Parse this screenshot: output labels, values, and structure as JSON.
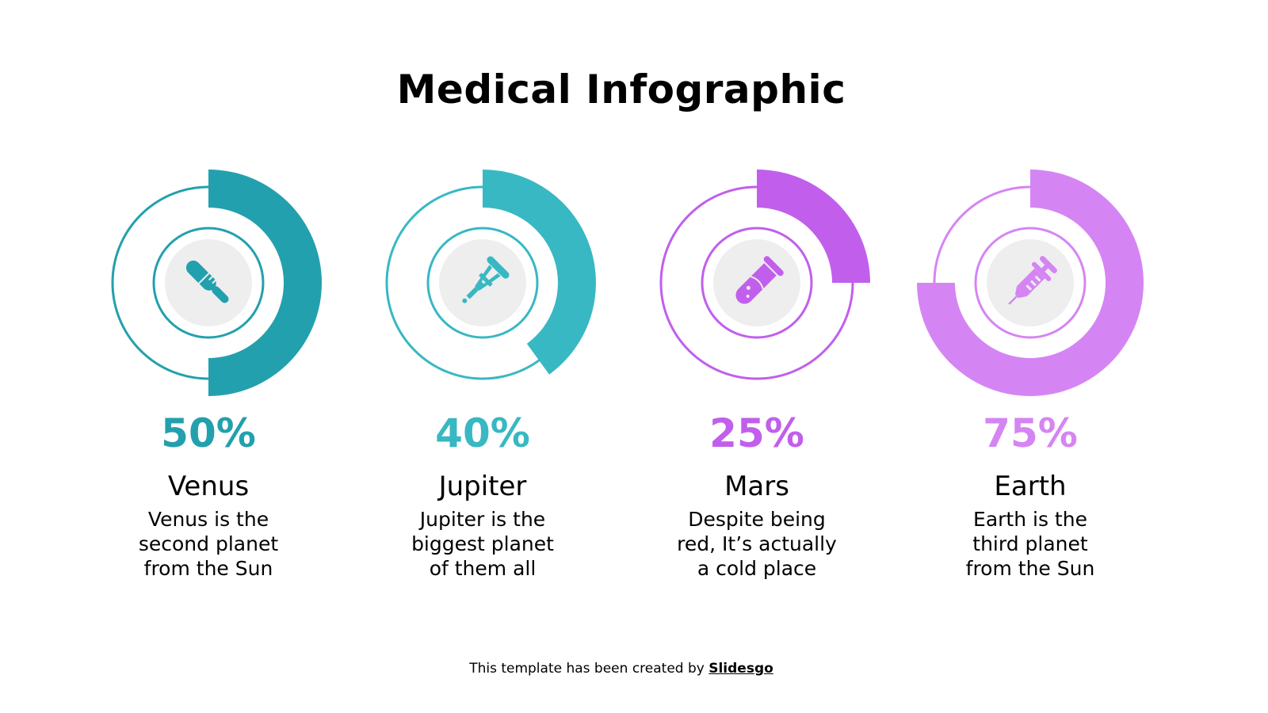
{
  "title": "Medical Infographic",
  "items": [
    {
      "percent_label": "50%",
      "value": 50,
      "name": "Venus",
      "description": "Venus is the\nsecond planet\nfrom the Sun",
      "color": "#23a0ad",
      "icon": "thermometer-icon"
    },
    {
      "percent_label": "40%",
      "value": 40,
      "name": "Jupiter",
      "description": "Jupiter is the\nbiggest planet\nof them all",
      "color": "#38b8c3",
      "icon": "crutch-icon"
    },
    {
      "percent_label": "25%",
      "value": 25,
      "name": "Mars",
      "description": "Despite being\nred, It’s actually\na cold place",
      "color": "#c15fec",
      "icon": "test-tube-icon"
    },
    {
      "percent_label": "75%",
      "value": 75,
      "name": "Earth",
      "description": "Earth is the\nthird planet\nfrom the Sun",
      "color": "#d585f3",
      "icon": "syringe-icon"
    }
  ],
  "footer": {
    "text": "This template has been created by ",
    "brand": "Slidesgo"
  }
}
